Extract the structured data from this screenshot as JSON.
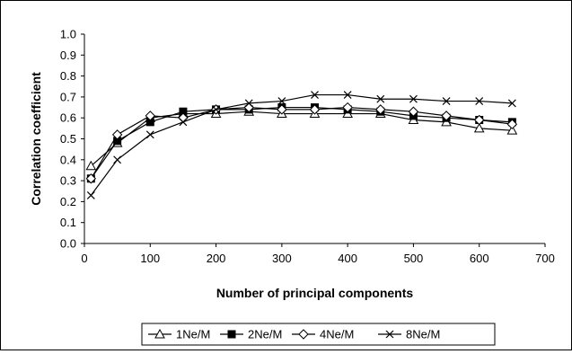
{
  "chart_data": {
    "type": "line",
    "title": "",
    "xlabel": "Number of principal components",
    "ylabel": "Correlation coefficient",
    "xlim": [
      0,
      700
    ],
    "ylim": [
      0.0,
      1.0
    ],
    "x_ticks": [
      "0",
      "100",
      "200",
      "300",
      "400",
      "500",
      "600",
      "700"
    ],
    "y_ticks": [
      "0.0",
      "0.1",
      "0.2",
      "0.3",
      "0.4",
      "0.5",
      "0.6",
      "0.7",
      "0.8",
      "0.9",
      "1.0"
    ],
    "x": [
      10,
      50,
      100,
      150,
      200,
      250,
      300,
      350,
      400,
      450,
      500,
      550,
      600,
      650
    ],
    "grid": false,
    "legend_position": "bottom",
    "series": [
      {
        "name": "1Ne/M",
        "marker": "triangle-open",
        "values": [
          0.37,
          0.48,
          0.6,
          0.62,
          0.62,
          0.63,
          0.62,
          0.62,
          0.62,
          0.62,
          0.59,
          0.58,
          0.55,
          0.54
        ]
      },
      {
        "name": "2Ne/M",
        "marker": "square-filled",
        "values": [
          0.31,
          0.49,
          0.58,
          0.63,
          0.64,
          0.64,
          0.65,
          0.65,
          0.64,
          0.63,
          0.61,
          0.6,
          0.59,
          0.58
        ]
      },
      {
        "name": "4Ne/M",
        "marker": "diamond-open",
        "values": [
          0.31,
          0.52,
          0.61,
          0.6,
          0.64,
          0.65,
          0.64,
          0.64,
          0.65,
          0.64,
          0.63,
          0.61,
          0.59,
          0.57
        ]
      },
      {
        "name": "8Ne/M",
        "marker": "x",
        "values": [
          0.23,
          0.4,
          0.52,
          0.58,
          0.64,
          0.67,
          0.68,
          0.71,
          0.71,
          0.69,
          0.69,
          0.68,
          0.68,
          0.67
        ]
      }
    ]
  }
}
